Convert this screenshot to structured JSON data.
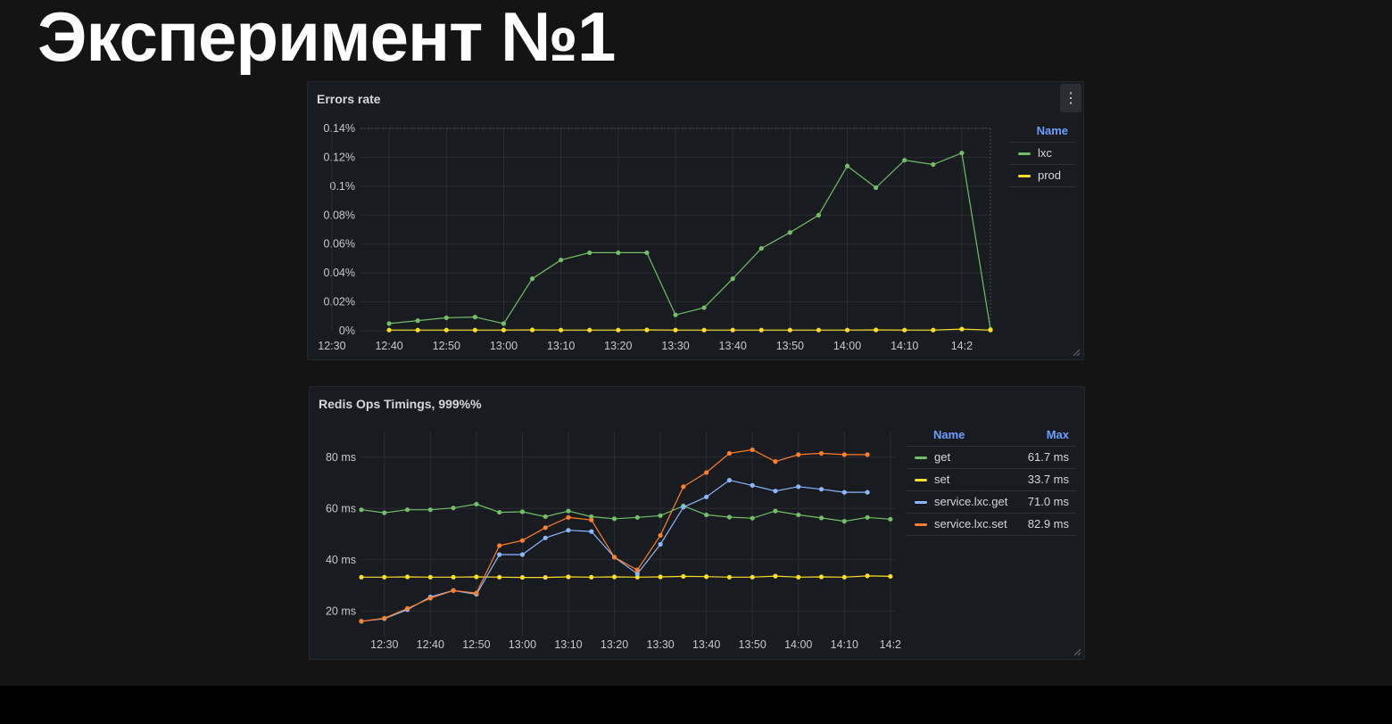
{
  "slide": {
    "title": "Эксперимент №1"
  },
  "panels": {
    "errors": {
      "title": "Errors rate",
      "legend": {
        "header_name": "Name",
        "items": [
          {
            "name": "lxc",
            "color": "#73bf69"
          },
          {
            "name": "prod",
            "color": "#fade2a"
          }
        ]
      }
    },
    "redis": {
      "title": "Redis Ops Timings, 999%%",
      "legend": {
        "header_name": "Name",
        "header_max": "Max",
        "items": [
          {
            "name": "get",
            "max": "61.7 ms",
            "color": "#73bf69"
          },
          {
            "name": "set",
            "max": "33.7 ms",
            "color": "#fade2a"
          },
          {
            "name": "service.lxc.get",
            "max": "71.0 ms",
            "color": "#8ab8ff"
          },
          {
            "name": "service.lxc.set",
            "max": "82.9 ms",
            "color": "#ff7f2a"
          }
        ]
      }
    }
  },
  "chart_data": [
    {
      "type": "line",
      "title": "Errors rate",
      "x_ticks": [
        "12:30",
        "12:40",
        "12:50",
        "13:00",
        "13:10",
        "13:20",
        "13:30",
        "13:40",
        "13:50",
        "14:00",
        "14:10",
        "14:2"
      ],
      "y_ticks": [
        "0%",
        "0.02%",
        "0.04%",
        "0.06%",
        "0.08%",
        "0.1%",
        "0.12%",
        "0.14%"
      ],
      "ylim": [
        0,
        0.14
      ],
      "xlim": [
        0,
        110
      ],
      "grid": true,
      "legend_position": "right",
      "series": [
        {
          "name": "lxc",
          "color": "#73bf69",
          "x": [
            5,
            10,
            15,
            20,
            25,
            30,
            35,
            40,
            45,
            50,
            55,
            60,
            65,
            70,
            75,
            80,
            85,
            90,
            95,
            100,
            105,
            110
          ],
          "y": [
            0.005,
            0.007,
            0.009,
            0.0095,
            0.005,
            0.036,
            0.049,
            0.054,
            0.054,
            0.054,
            0.011,
            0.016,
            0.036,
            0.057,
            0.068,
            0.08,
            0.114,
            0.099,
            0.118,
            0.115,
            0.123,
            0.001
          ]
        },
        {
          "name": "prod",
          "color": "#fade2a",
          "x": [
            5,
            10,
            15,
            20,
            25,
            30,
            35,
            40,
            45,
            50,
            55,
            60,
            65,
            70,
            75,
            80,
            85,
            90,
            95,
            100,
            105,
            110
          ],
          "y": [
            0.0005,
            0.0005,
            0.0005,
            0.0005,
            0.0005,
            0.0006,
            0.0005,
            0.0005,
            0.0005,
            0.0006,
            0.0005,
            0.0005,
            0.0005,
            0.0005,
            0.0005,
            0.0005,
            0.0005,
            0.0006,
            0.0005,
            0.0005,
            0.0012,
            0.0005
          ]
        }
      ]
    },
    {
      "type": "line",
      "title": "Redis Ops Timings, 999%%",
      "x_ticks": [
        "12:30",
        "12:40",
        "12:50",
        "13:00",
        "13:10",
        "13:20",
        "13:30",
        "13:40",
        "13:50",
        "14:00",
        "14:10",
        "14:2"
      ],
      "y_ticks": [
        "20 ms",
        "40 ms",
        "60 ms",
        "80 ms"
      ],
      "ylim": [
        10,
        90
      ],
      "xlim": [
        -3,
        113
      ],
      "grid": true,
      "legend_position": "right",
      "series": [
        {
          "name": "get",
          "color": "#73bf69",
          "x": [
            -3,
            2,
            7,
            12,
            17,
            22,
            27,
            32,
            37,
            42,
            47,
            52,
            57,
            62,
            67,
            72,
            77,
            82,
            87,
            92,
            97,
            102,
            107,
            112
          ],
          "y": [
            59.5,
            58.3,
            59.5,
            59.5,
            60.2,
            61.7,
            58.5,
            58.7,
            56.8,
            59,
            56.8,
            56,
            56.5,
            57.2,
            61,
            57.5,
            56.6,
            56.2,
            59,
            57.5,
            56.3,
            55,
            56.5,
            55.8
          ]
        },
        {
          "name": "set",
          "color": "#fade2a",
          "x": [
            -3,
            2,
            7,
            12,
            17,
            22,
            27,
            32,
            37,
            42,
            47,
            52,
            57,
            62,
            67,
            72,
            77,
            82,
            87,
            92,
            97,
            102,
            107,
            112
          ],
          "y": [
            33.2,
            33.2,
            33.3,
            33.2,
            33.2,
            33.3,
            33.2,
            33.1,
            33.1,
            33.3,
            33.2,
            33.3,
            33.2,
            33.3,
            33.5,
            33.4,
            33.2,
            33.2,
            33.6,
            33.2,
            33.3,
            33.2,
            33.7,
            33.5
          ]
        },
        {
          "name": "service.lxc.get",
          "color": "#8ab8ff",
          "x": [
            -3,
            2,
            7,
            12,
            17,
            22,
            27,
            32,
            37,
            42,
            47,
            52,
            57,
            62,
            67,
            72,
            77,
            82,
            87,
            92,
            97,
            102,
            107
          ],
          "y": [
            16,
            17,
            20.5,
            25.5,
            28,
            26.5,
            42,
            42,
            48.5,
            51.5,
            51,
            41,
            34.5,
            46,
            60.5,
            64.5,
            71,
            69,
            66.8,
            68.5,
            67.5,
            66.3,
            66.3
          ]
        },
        {
          "name": "service.lxc.set",
          "color": "#ff7f2a",
          "x": [
            -3,
            2,
            7,
            12,
            17,
            22,
            27,
            32,
            37,
            42,
            47,
            52,
            57,
            62,
            67,
            72,
            77,
            82,
            87,
            92,
            97,
            102,
            107
          ],
          "y": [
            16,
            17.2,
            21,
            25,
            28,
            27,
            45.5,
            47.5,
            52.5,
            56.5,
            55.5,
            41,
            36,
            49.5,
            68.5,
            74,
            81.5,
            82.9,
            78.3,
            81,
            81.5,
            81,
            81
          ]
        }
      ]
    }
  ]
}
